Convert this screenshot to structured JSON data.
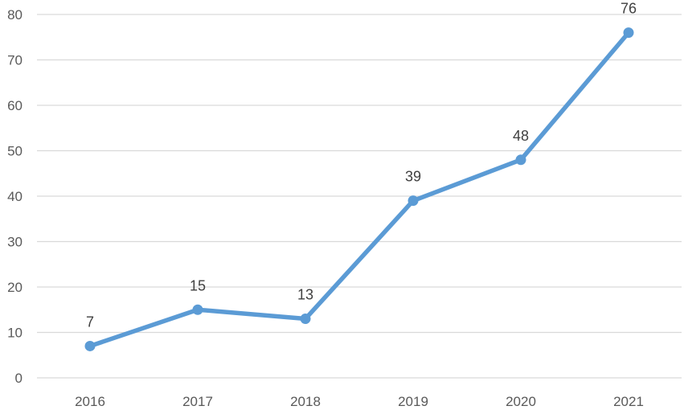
{
  "chart_data": {
    "type": "line",
    "title": "",
    "xlabel": "",
    "ylabel": "",
    "categories": [
      "2016",
      "2017",
      "2018",
      "2019",
      "2020",
      "2021"
    ],
    "series": [
      {
        "values": [
          7,
          15,
          13,
          39,
          48,
          76
        ]
      }
    ],
    "ylim": [
      0,
      80
    ],
    "yticks": [
      "0",
      "10",
      "20",
      "30",
      "40",
      "50",
      "60",
      "70",
      "80"
    ],
    "data_labels": [
      "7",
      "15",
      "13",
      "39",
      "48",
      "76"
    ],
    "grid": true,
    "legend": "none",
    "colors": {
      "line": "#5b9bd5",
      "grid": "#d9d9d9",
      "tick_text": "#595959",
      "label_text": "#404040"
    }
  }
}
